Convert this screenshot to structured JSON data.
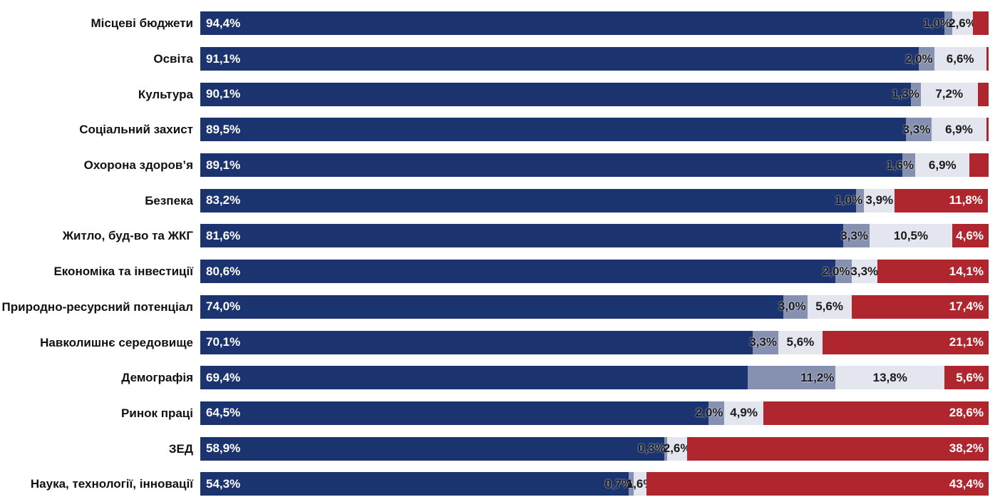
{
  "chart_data": {
    "type": "stacked-bar-horizontal",
    "categories": [
      "Місцеві бюджети",
      "Освіта",
      "Культура",
      "Соціальний захист",
      "Охорона здоров’я",
      "Безпека",
      "Житло, буд-во та ЖКГ",
      "Економіка та інвестиції",
      "Природно-ресурсний потенціал",
      "Навколишнє середовище",
      "Демографія",
      "Ринок праці",
      "ЗЕД",
      "Наука, технології, інновації"
    ],
    "series": [
      {
        "color": "#1b336f",
        "values": [
          94.4,
          91.1,
          90.1,
          89.5,
          89.1,
          83.2,
          81.6,
          80.6,
          74.0,
          70.1,
          69.4,
          64.5,
          58.9,
          54.3
        ],
        "value_labels": [
          "94,4%",
          "91,1%",
          "90,1%",
          "89,5%",
          "89,1%",
          "83,2%",
          "81,6%",
          "80,6%",
          "74,0%",
          "70,1%",
          "69,4%",
          "64,5%",
          "58,9%",
          "54,3%"
        ]
      },
      {
        "color": "#8690b0",
        "values": [
          1.0,
          2.0,
          1.3,
          3.3,
          1.6,
          1.0,
          3.3,
          2.0,
          3.0,
          3.3,
          11.2,
          2.0,
          0.3,
          0.7
        ],
        "value_labels": [
          "1,0%",
          "2,0%",
          "1,3%",
          "3,3%",
          "1,6%",
          "1,0%",
          "3,3%",
          "2,0%",
          "3,0%",
          "3,3%",
          "11,2%",
          "2,0%",
          "0,3%",
          "0,7%"
        ]
      },
      {
        "color": "#e3e6ee",
        "values": [
          2.6,
          6.6,
          7.2,
          6.9,
          6.9,
          3.9,
          10.5,
          3.3,
          5.6,
          5.6,
          13.8,
          4.9,
          2.6,
          1.6
        ],
        "value_labels": [
          "2,6%",
          "6,6%",
          "7,2%",
          "6,9%",
          "6,9%",
          "3,9%",
          "10,5%",
          "3,3%",
          "5,6%",
          "5,6%",
          "13,8%",
          "4,9%",
          "2,6%",
          "1,6%"
        ]
      },
      {
        "color": "#b0262f",
        "values": [
          2.0,
          0.3,
          1.4,
          0.3,
          2.4,
          11.8,
          4.6,
          14.1,
          17.4,
          21.1,
          5.6,
          28.6,
          38.2,
          43.4
        ],
        "value_labels": [
          null,
          null,
          null,
          null,
          null,
          "11,8%",
          "4,6%",
          "14,1%",
          "17,4%",
          "21,1%",
          "5,6%",
          "28,6%",
          "38,2%",
          "43,4%"
        ]
      }
    ]
  }
}
